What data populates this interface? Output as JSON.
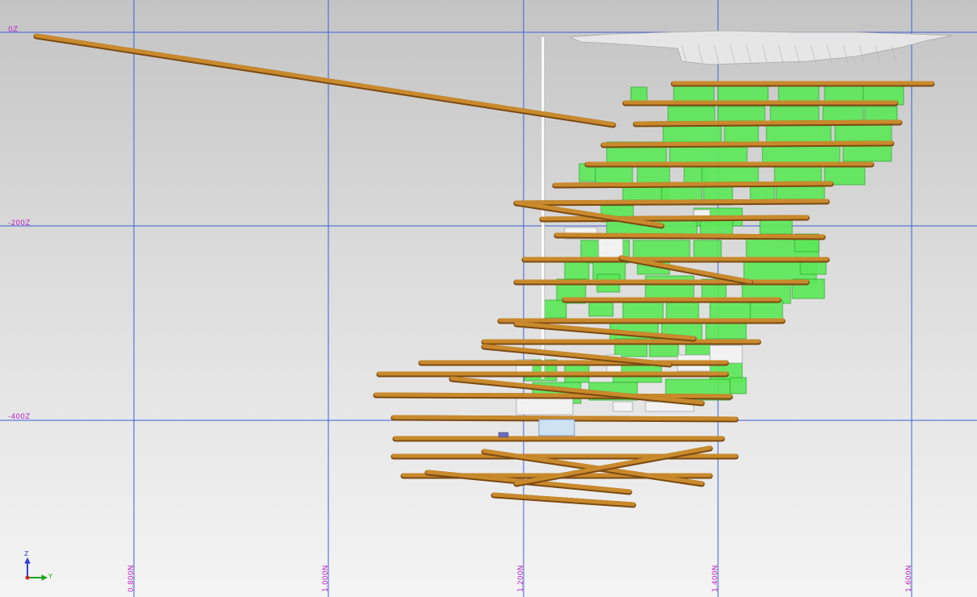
{
  "view": {
    "background_top": "#c4c4c4",
    "background_bottom": "#f4f4f4",
    "grid_color": "#3a5fd8",
    "label_color": "#c026c8",
    "drive_color": "#c98a2c",
    "stope_color": "#5ee85a",
    "surface_color": "#e6e6e6"
  },
  "axes": {
    "elevation_labels": [
      "0Z",
      "-200Z",
      "-400Z"
    ],
    "northing_labels": [
      "0.800N",
      "1.000N",
      "1.200N",
      "1.400N",
      "1.600N"
    ]
  },
  "triad": {
    "z_label": "Z",
    "y_label": "Y",
    "z_color": "#2f3fd0",
    "y_color": "#1ea51e",
    "origin_color": "#d02020"
  }
}
